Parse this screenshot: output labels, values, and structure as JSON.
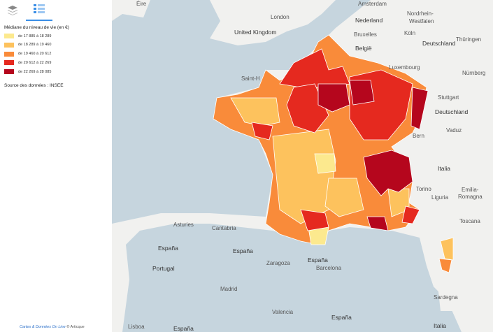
{
  "legend": {
    "title": "Médiane du niveau de vie (en €)",
    "items": [
      {
        "label": "de 17 885 à 18 289",
        "color": "#fce98e"
      },
      {
        "label": "de 18 289 à 19 460",
        "color": "#fdc25d"
      },
      {
        "label": "de 19 460 à 20 612",
        "color": "#f98b3a"
      },
      {
        "label": "de 20 612 à 22 269",
        "color": "#e5291f"
      },
      {
        "label": "de 22 269 à 28 085",
        "color": "#b5061d"
      }
    ],
    "source": "Source des données : INSEE"
  },
  "map": {
    "labels": [
      "Éire",
      "London",
      "United Kingdom",
      "Amsterdam",
      "Nederland",
      "Nordrhein-",
      "Westfalen",
      "Bruxelles",
      "België",
      "Köln",
      "Deutschland",
      "Thüringen",
      "Luxembourg",
      "Nürnberg",
      "Saint-H",
      "Stuttgart",
      "Deutschland",
      "Vaduz",
      "Bern",
      "Italia",
      "Torino",
      "Emilia-",
      "Romagna",
      "Liguria",
      "Toscana",
      "Asturies",
      "Cantabria",
      "España",
      "España",
      "España",
      "Portugal",
      "Zaragoza",
      "Barcelona",
      "Madrid",
      "Valencia",
      "Sardegna",
      "España",
      "Lisboa",
      "España",
      "Italia"
    ]
  },
  "footer": {
    "link": "Cartes & Données On Line",
    "credit": "© Articque"
  }
}
